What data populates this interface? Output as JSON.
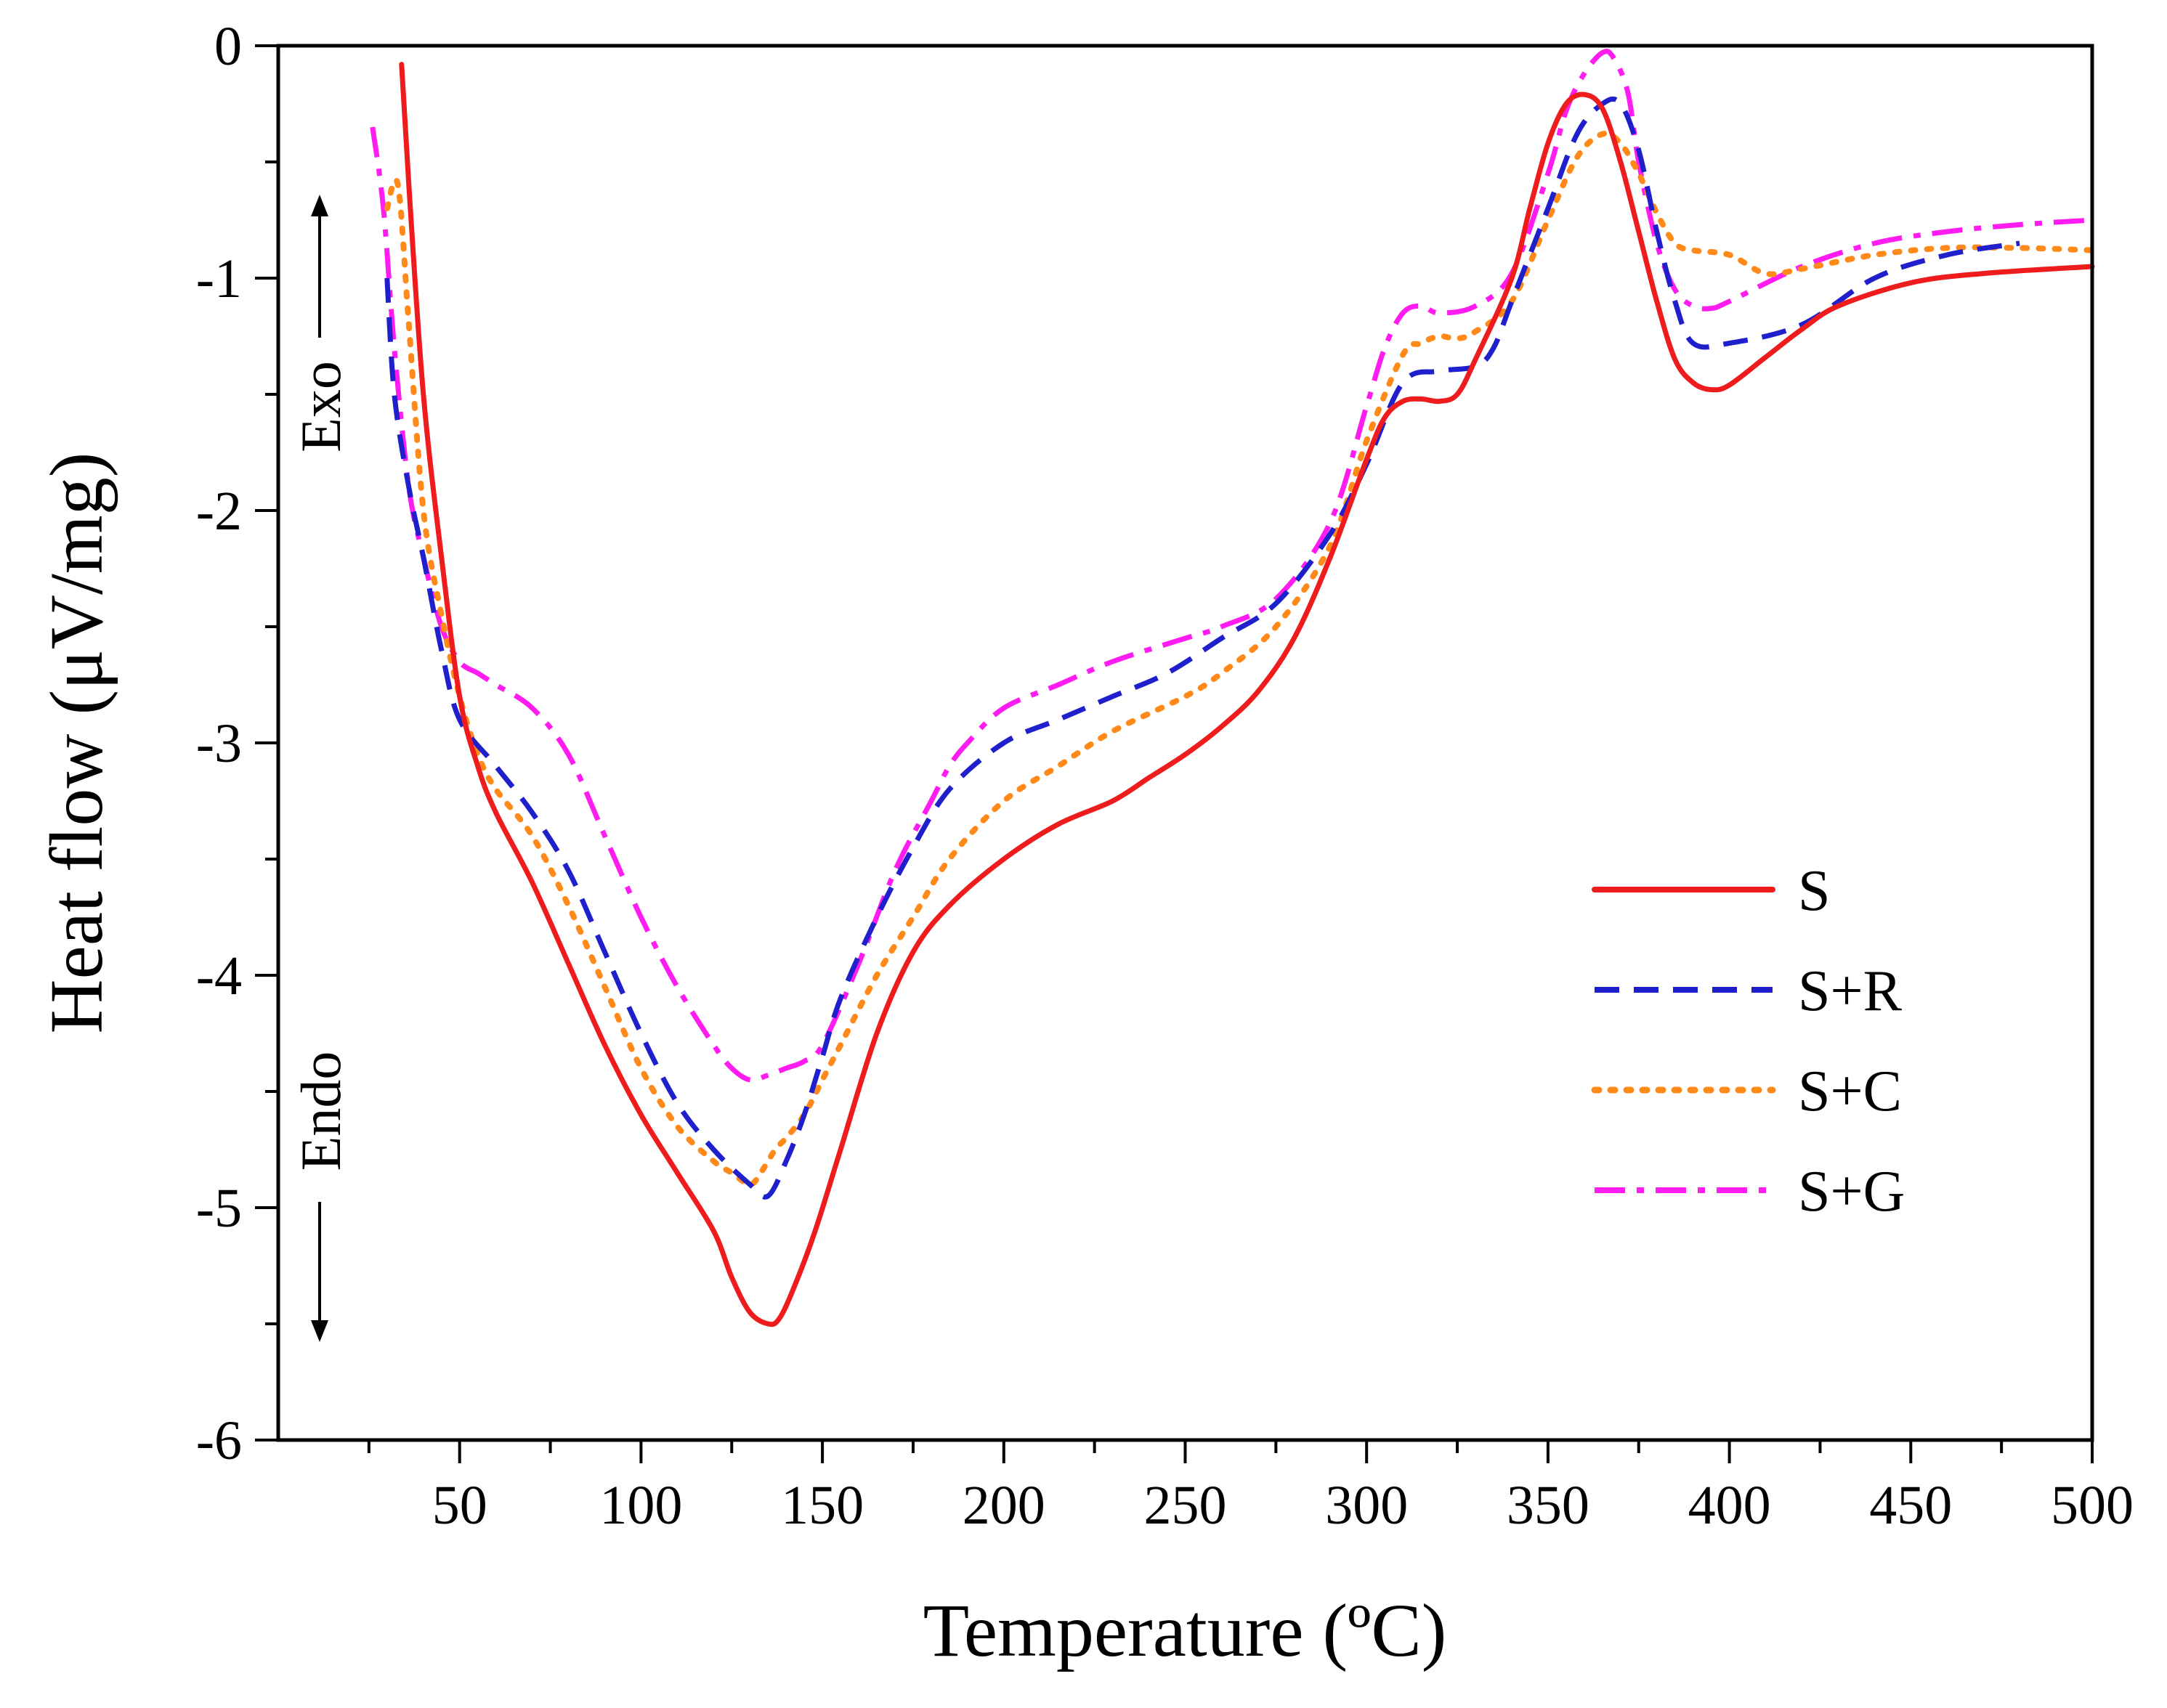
{
  "chart_data": {
    "type": "line",
    "title": "",
    "xlabel": "Temperature (ºC)",
    "ylabel": "Heat flow (μV/mg)",
    "xlim": [
      0,
      500
    ],
    "ylim": [
      -6,
      0
    ],
    "xticks": [
      50,
      100,
      150,
      200,
      250,
      300,
      350,
      400,
      450,
      500
    ],
    "yticks": [
      0,
      -1,
      -2,
      -3,
      -4,
      -5,
      -6
    ],
    "grid": false,
    "legend_position": "lower-right",
    "annotations": {
      "exo": "Exo",
      "endo": "Endo"
    },
    "series": [
      {
        "name": "S",
        "color": "#ee1c1c",
        "dash": "solid",
        "x": [
          34,
          36,
          40,
          45,
          50,
          55,
          60,
          70,
          80,
          90,
          100,
          110,
          120,
          125,
          130,
          135,
          138,
          142,
          148,
          155,
          165,
          175,
          185,
          200,
          215,
          230,
          240,
          250,
          260,
          270,
          280,
          290,
          300,
          305,
          310,
          315,
          320,
          325,
          330,
          340,
          345,
          350,
          355,
          360,
          365,
          370,
          375,
          380,
          385,
          390,
          395,
          400,
          410,
          420,
          430,
          450,
          470,
          500
        ],
        "y": [
          -0.08,
          -0.6,
          -1.5,
          -2.2,
          -2.8,
          -3.1,
          -3.3,
          -3.6,
          -3.95,
          -4.3,
          -4.6,
          -4.85,
          -5.1,
          -5.3,
          -5.45,
          -5.5,
          -5.48,
          -5.35,
          -5.1,
          -4.75,
          -4.25,
          -3.9,
          -3.7,
          -3.5,
          -3.35,
          -3.25,
          -3.15,
          -3.05,
          -2.93,
          -2.78,
          -2.55,
          -2.2,
          -1.78,
          -1.6,
          -1.53,
          -1.52,
          -1.53,
          -1.5,
          -1.35,
          -1.0,
          -0.7,
          -0.42,
          -0.25,
          -0.21,
          -0.27,
          -0.5,
          -0.8,
          -1.1,
          -1.35,
          -1.45,
          -1.48,
          -1.46,
          -1.34,
          -1.22,
          -1.12,
          -1.02,
          -0.98,
          -0.95
        ]
      },
      {
        "name": "S+R",
        "color": "#1f1fcc",
        "dash": "dashed",
        "x": [
          30,
          32,
          36,
          40,
          45,
          50,
          60,
          70,
          80,
          90,
          100,
          110,
          120,
          130,
          135,
          140,
          145,
          150,
          155,
          165,
          175,
          185,
          200,
          215,
          230,
          245,
          260,
          275,
          290,
          300,
          310,
          320,
          330,
          335,
          340,
          350,
          358,
          365,
          370,
          375,
          380,
          385,
          390,
          400,
          420,
          440,
          460,
          480
        ],
        "y": [
          -1.0,
          -1.5,
          -1.9,
          -2.2,
          -2.6,
          -2.9,
          -3.1,
          -3.3,
          -3.55,
          -3.9,
          -4.25,
          -4.55,
          -4.75,
          -4.9,
          -4.95,
          -4.8,
          -4.6,
          -4.35,
          -4.1,
          -3.75,
          -3.45,
          -3.2,
          -3.0,
          -2.9,
          -2.8,
          -2.7,
          -2.55,
          -2.4,
          -2.1,
          -1.8,
          -1.45,
          -1.4,
          -1.38,
          -1.3,
          -1.1,
          -0.7,
          -0.38,
          -0.25,
          -0.25,
          -0.45,
          -0.8,
          -1.1,
          -1.28,
          -1.28,
          -1.2,
          -1.0,
          -0.9,
          -0.85
        ]
      },
      {
        "name": "S+C",
        "color": "#ff8a1a",
        "dash": "dotted",
        "x": [
          30,
          33,
          36,
          40,
          45,
          50,
          55,
          60,
          70,
          80,
          90,
          100,
          110,
          120,
          125,
          130,
          133,
          137,
          140,
          145,
          150,
          155,
          165,
          175,
          185,
          200,
          215,
          230,
          250,
          260,
          275,
          290,
          300,
          310,
          315,
          320,
          325,
          330,
          340,
          350,
          358,
          365,
          370,
          375,
          380,
          385,
          390,
          400,
          410,
          420,
          440,
          460,
          480,
          500
        ],
        "y": [
          -0.7,
          -0.6,
          -1.2,
          -2.0,
          -2.45,
          -2.8,
          -3.05,
          -3.2,
          -3.4,
          -3.7,
          -4.05,
          -4.4,
          -4.65,
          -4.8,
          -4.85,
          -4.9,
          -4.85,
          -4.75,
          -4.7,
          -4.6,
          -4.45,
          -4.3,
          -4.0,
          -3.75,
          -3.5,
          -3.25,
          -3.1,
          -2.95,
          -2.8,
          -2.7,
          -2.5,
          -2.15,
          -1.7,
          -1.33,
          -1.28,
          -1.25,
          -1.26,
          -1.23,
          -1.1,
          -0.75,
          -0.48,
          -0.38,
          -0.42,
          -0.55,
          -0.72,
          -0.85,
          -0.88,
          -0.9,
          -0.98,
          -0.96,
          -0.9,
          -0.87,
          -0.87,
          -0.88
        ]
      },
      {
        "name": "S+G",
        "color": "#ff1cf0",
        "dash": "dashdot",
        "x": [
          26,
          29,
          32,
          36,
          40,
          45,
          50,
          55,
          60,
          70,
          80,
          90,
          100,
          110,
          120,
          125,
          130,
          135,
          140,
          145,
          150,
          160,
          170,
          180,
          185,
          190,
          200,
          215,
          230,
          250,
          260,
          275,
          290,
          300,
          305,
          310,
          315,
          320,
          330,
          340,
          350,
          355,
          360,
          365,
          368,
          372,
          375,
          380,
          385,
          390,
          395,
          400,
          420,
          440,
          460,
          480,
          500
        ],
        "y": [
          -0.35,
          -0.7,
          -1.3,
          -1.9,
          -2.2,
          -2.5,
          -2.65,
          -2.7,
          -2.75,
          -2.85,
          -3.05,
          -3.4,
          -3.75,
          -4.05,
          -4.3,
          -4.4,
          -4.45,
          -4.43,
          -4.4,
          -4.37,
          -4.3,
          -3.95,
          -3.55,
          -3.25,
          -3.1,
          -3.0,
          -2.85,
          -2.75,
          -2.65,
          -2.55,
          -2.5,
          -2.38,
          -2.05,
          -1.55,
          -1.3,
          -1.15,
          -1.12,
          -1.15,
          -1.12,
          -0.98,
          -0.55,
          -0.28,
          -0.12,
          -0.03,
          -0.05,
          -0.2,
          -0.5,
          -0.85,
          -1.05,
          -1.12,
          -1.13,
          -1.1,
          -0.95,
          -0.85,
          -0.8,
          -0.77,
          -0.75
        ]
      }
    ]
  }
}
